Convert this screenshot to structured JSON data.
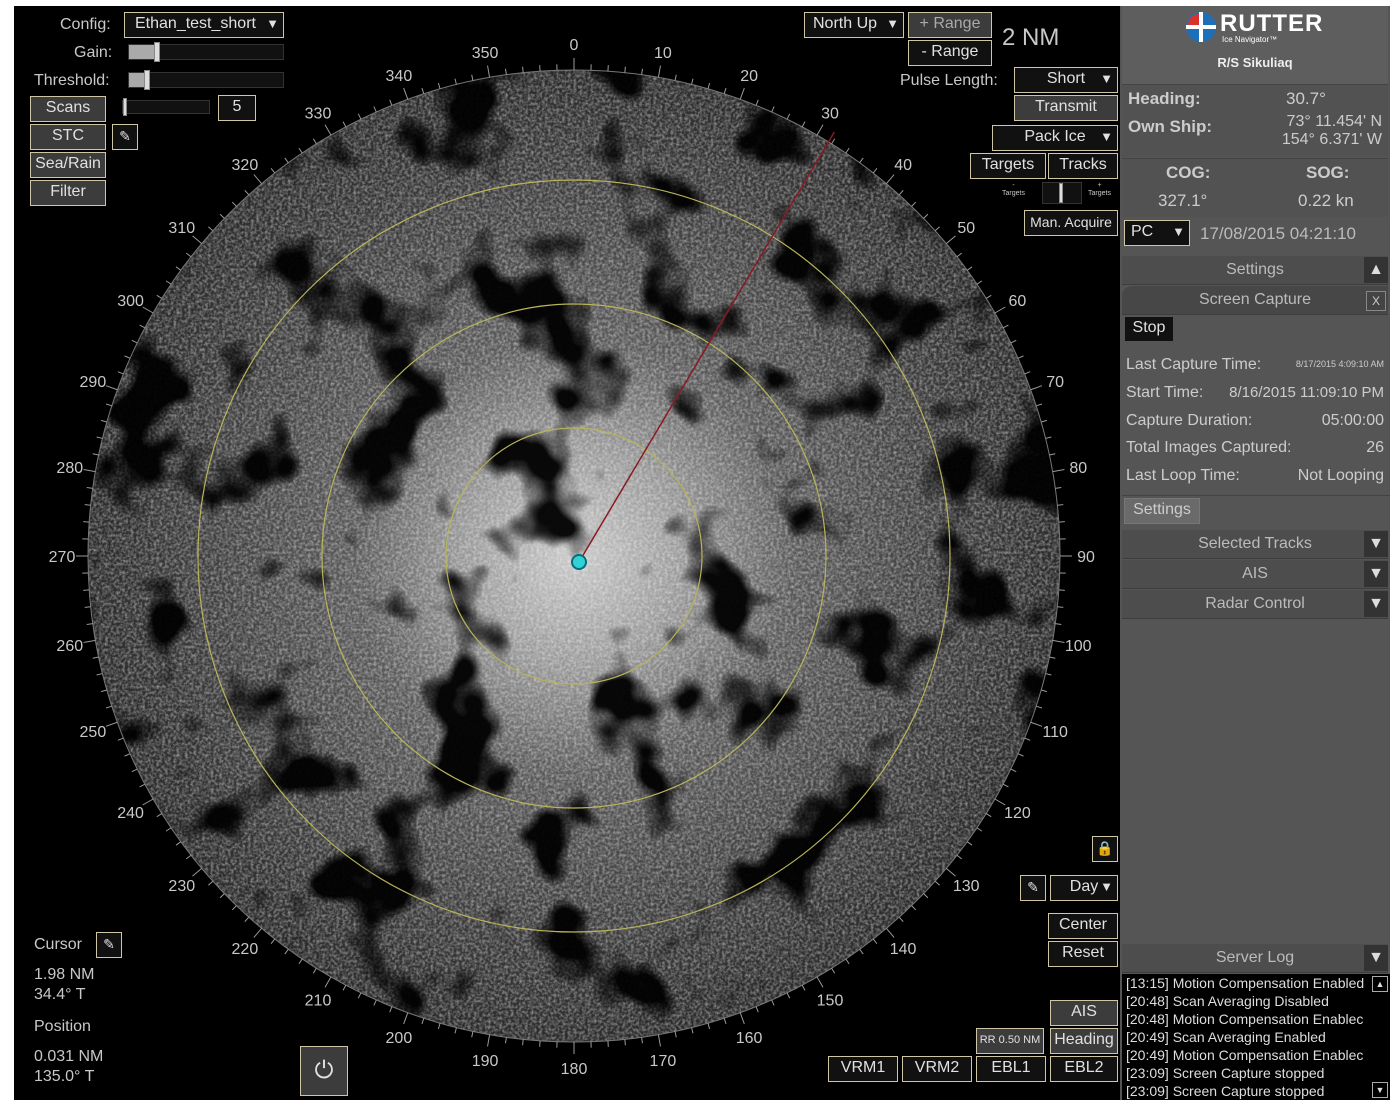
{
  "top_left": {
    "config_label": "Config:",
    "config_value": "Ethan_test_short",
    "gain_label": "Gain:",
    "gain_level": 0.18,
    "threshold_label": "Threshold:",
    "threshold_level": 0.12,
    "scans_button": "Scans",
    "scans_value": "5",
    "stc_button": "STC",
    "searain_button": "Sea/Rain",
    "filter_button": "Filter"
  },
  "top_right": {
    "orientation": "North Up",
    "plus_range": "+ Range",
    "minus_range": "- Range",
    "range_value": "2 NM",
    "pulse_label": "Pulse Length:",
    "pulse_value": "Short",
    "transmit": "Transmit",
    "ice_mode": "Pack Ice",
    "targets": "Targets",
    "tracks": "Tracks",
    "targets_small_left": "-\nTargets",
    "targets_small_right": "+\nTargets",
    "man_acquire": "Man. Acquire"
  },
  "bearings": [
    "0",
    "10",
    "20",
    "30",
    "40",
    "50",
    "60",
    "70",
    "80",
    "90",
    "100",
    "110",
    "120",
    "130",
    "140",
    "150",
    "160",
    "170",
    "180",
    "190",
    "200",
    "210",
    "220",
    "230",
    "240",
    "250",
    "260",
    "270",
    "280",
    "290",
    "300",
    "310",
    "320",
    "330",
    "340",
    "350"
  ],
  "heading_line_deg": 30.7,
  "cursor_info": {
    "cursor_label": "Cursor",
    "cursor_range": "1.98 NM",
    "cursor_bearing": "34.4° T",
    "position_label": "Position",
    "position_range": "0.031 NM",
    "position_bearing": "135.0° T"
  },
  "bottom_right": {
    "day": "Day",
    "center": "Center",
    "reset": "Reset",
    "ais": "AIS",
    "rr": "RR 0.50 NM",
    "heading": "Heading",
    "vrm1": "VRM1",
    "vrm2": "VRM2",
    "ebl1": "EBL1",
    "ebl2": "EBL2"
  },
  "panel": {
    "brand": "RUTTER",
    "brand_sub": "Ice Navigator™",
    "vessel": "R/S Sikuliaq",
    "heading_label": "Heading:",
    "heading_value": "30.7°",
    "ownship_label": "Own Ship:",
    "lat": "73° 11.454' N",
    "lon": "154° 6.371' W",
    "cog_label": "COG:",
    "sog_label": "SOG:",
    "cog_value": "327.1°",
    "sog_value": "0.22 kn",
    "pc": "PC",
    "datetime": "17/08/2015 04:21:10",
    "settings_hdr": "Settings",
    "screen_capture_hdr": "Screen Capture",
    "close_x": "X",
    "stop": "Stop",
    "last_capture_label": "Last Capture Time:",
    "last_capture_value": "8/17/2015 4:09:10 AM",
    "start_label": "Start Time:",
    "start_value": "8/16/2015 11:09:10 PM",
    "duration_label": "Capture Duration:",
    "duration_value": "05:00:00",
    "total_label": "Total Images Captured:",
    "total_value": "26",
    "loop_label": "Last Loop Time:",
    "loop_value": "Not Looping",
    "settings_btn": "Settings",
    "selected_tracks": "Selected Tracks",
    "ais": "AIS",
    "radar_control": "Radar Control",
    "server_log": "Server Log",
    "log": [
      "[13:15] Motion Compensation Enabled",
      "[20:48] Scan Averaging Disabled",
      "[20:48] Motion Compensation Enablec",
      "[20:49] Scan Averaging Enabled",
      "[20:49] Motion Compensation Enablec",
      "[23:09] Screen Capture stopped",
      "[23:09] Screen Capture stopped"
    ]
  },
  "colors": {
    "ring": "#b8b45a",
    "heading_line": "#8a1a22",
    "ship": "#2fd3d3",
    "button_border": "#cfc7a4",
    "panel_bg": "#555555"
  }
}
